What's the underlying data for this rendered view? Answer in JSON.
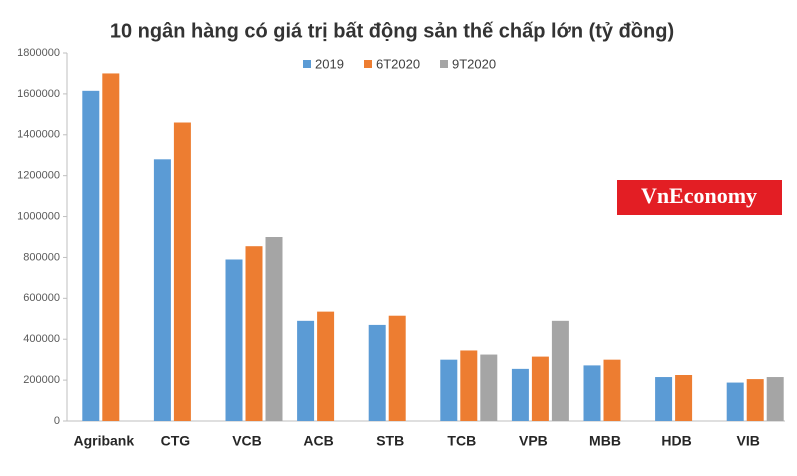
{
  "chart_data": {
    "type": "bar",
    "title": "10 ngân hàng có giá trị bất động sản thế chấp lớn (tỷ đồng)",
    "annotation": "VnEconomy",
    "categories": [
      "Agribank",
      "CTG",
      "VCB",
      "ACB",
      "STB",
      "TCB",
      "VPB",
      "MBB",
      "HDB",
      "VIB"
    ],
    "series": [
      {
        "name": "2019",
        "color": "#5b9bd5",
        "values": [
          1615000,
          1280000,
          790000,
          490000,
          470000,
          300000,
          255000,
          272000,
          215000,
          188000
        ]
      },
      {
        "name": "6T2020",
        "color": "#ed7d31",
        "values": [
          1700000,
          1460000,
          855000,
          535000,
          515000,
          345000,
          315000,
          300000,
          225000,
          205000
        ]
      },
      {
        "name": "9T2020",
        "color": "#a5a5a5",
        "values": [
          null,
          null,
          900000,
          null,
          null,
          325000,
          490000,
          null,
          null,
          215000
        ]
      }
    ],
    "ylim": [
      0,
      1800000
    ],
    "yticks": [
      0,
      200000,
      400000,
      600000,
      800000,
      1000000,
      1200000,
      1400000,
      1600000,
      1800000
    ],
    "grid": false,
    "legend": "top"
  }
}
